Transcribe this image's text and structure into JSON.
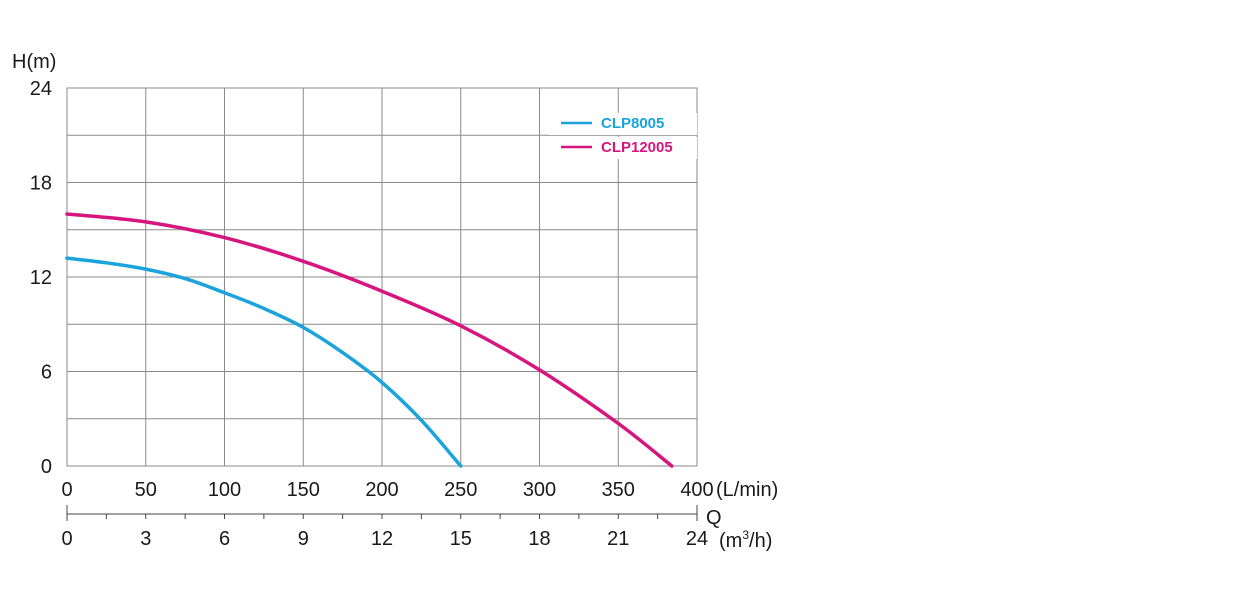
{
  "chart_data": {
    "type": "line",
    "ylabel": "H(m)",
    "y_ticks": [
      0,
      6,
      12,
      18,
      24
    ],
    "ylim": [
      0,
      24
    ],
    "x_primary": {
      "unit_label": "(L/min)",
      "ticks": [
        0,
        50,
        100,
        150,
        200,
        250,
        300,
        350,
        400
      ],
      "range": [
        0,
        400
      ]
    },
    "x_secondary": {
      "axis_symbol": "Q",
      "unit_label": "(m³/h)",
      "unit_main": "(m",
      "unit_sup": "3",
      "unit_end": "/h)",
      "ticks": [
        0,
        3,
        6,
        9,
        12,
        15,
        18,
        21,
        24
      ]
    },
    "grid": true,
    "legend_position": "top-right",
    "series": [
      {
        "name": "CLP8005",
        "color": "#1aa3dd",
        "x": [
          0,
          25,
          50,
          75,
          100,
          125,
          150,
          175,
          200,
          225,
          250
        ],
        "y": [
          13.2,
          12.9,
          12.5,
          11.9,
          11.0,
          10.0,
          8.8,
          7.2,
          5.3,
          2.9,
          0
        ]
      },
      {
        "name": "CLP12005",
        "color": "#d6167e",
        "x": [
          0,
          50,
          100,
          150,
          200,
          250,
          300,
          350,
          384
        ],
        "y": [
          16.0,
          15.5,
          14.5,
          13.0,
          11.1,
          8.9,
          6.1,
          2.7,
          0
        ]
      }
    ]
  }
}
